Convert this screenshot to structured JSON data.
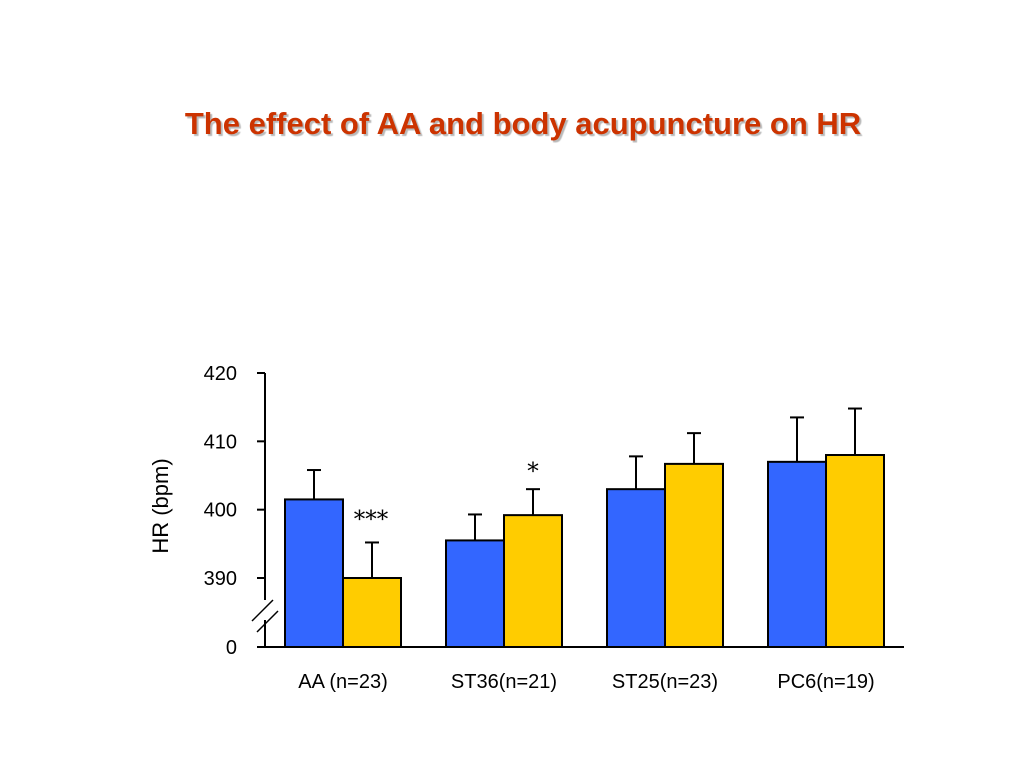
{
  "title": "The effect of AA and body acupuncture on HR",
  "colors": {
    "title": "#cc3300",
    "series_1": "#3366ff",
    "series_2": "#ffcc00",
    "axis": "#000000"
  },
  "chart_data": {
    "type": "bar",
    "categories": [
      "AA (n=23)",
      "ST36(n=21)",
      "ST25(n=23)",
      "PC6(n=19)"
    ],
    "series": [
      {
        "values": [
          401.5,
          395.5,
          403.0,
          407.0
        ],
        "error": [
          4.3,
          3.8,
          4.8,
          6.5
        ],
        "color": "#3366ff"
      },
      {
        "values": [
          390.0,
          399.2,
          406.7,
          408.0
        ],
        "error": [
          5.2,
          3.8,
          4.5,
          6.8
        ],
        "color": "#ffcc00"
      }
    ],
    "ylabel": "HR (bpm)",
    "ylim": [
      390,
      420
    ],
    "yticks": [
      "420",
      "410",
      "400",
      "390",
      "0"
    ],
    "axis_break": true,
    "annotations": [
      {
        "text": "***",
        "category_index": 0,
        "series_index": 1
      },
      {
        "text": "*",
        "category_index": 1,
        "series_index": 1
      }
    ],
    "grid": false,
    "legend": "none"
  }
}
